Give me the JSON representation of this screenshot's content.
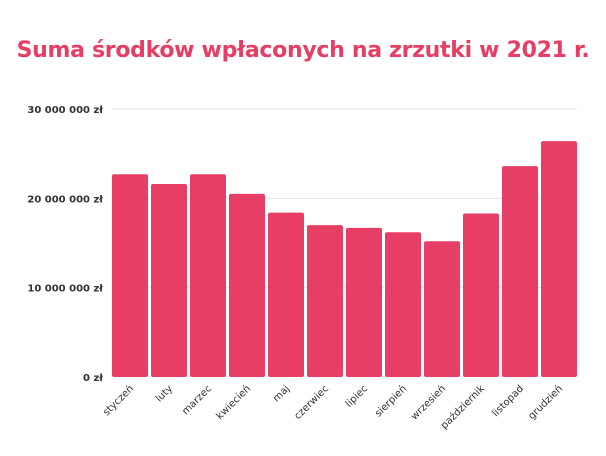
{
  "chart_data": {
    "type": "bar",
    "title": "Suma środków wpłaconych na zrzutki w 2021 r.",
    "categories": [
      "styczeń",
      "luty",
      "marzec",
      "kwiecień",
      "maj",
      "czerwiec",
      "lipiec",
      "sierpień",
      "wrzesień",
      "październik",
      "listopad",
      "grudzień"
    ],
    "values": [
      22700000,
      21600000,
      22700000,
      20500000,
      18400000,
      17000000,
      16700000,
      16200000,
      15200000,
      18300000,
      23600000,
      26400000
    ],
    "ylim": [
      0,
      30000000
    ],
    "yticks": [
      0,
      10000000,
      20000000,
      30000000
    ],
    "ytick_labels": [
      "0 zł",
      "10 000 000 zł",
      "20 000 000 zł",
      "30 000 000 zł"
    ],
    "grid": true,
    "bar_color": "#e63e64",
    "title_color": "#e63e64"
  }
}
